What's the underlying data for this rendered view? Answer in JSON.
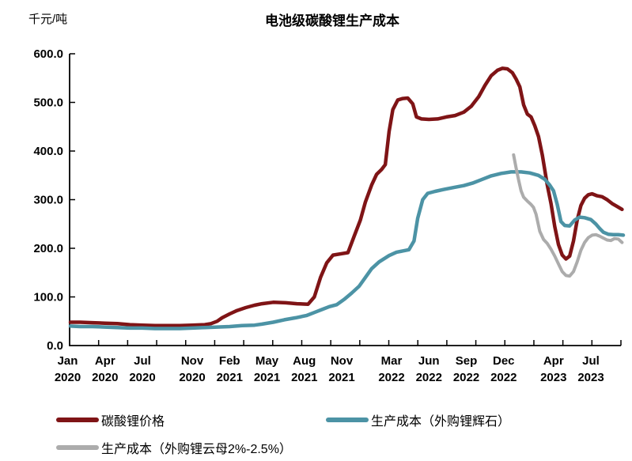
{
  "chart_data": {
    "type": "line",
    "title": "电池级碳酸锂生产成本",
    "grid": false,
    "legend_position": "bottom",
    "x_unit": "months_since_Jan_2020",
    "y_axis": {
      "unit": "千元/吨",
      "min": 0,
      "max": 600,
      "ticks": [
        {
          "v": 0,
          "label": "0.0"
        },
        {
          "v": 100,
          "label": "100.0"
        },
        {
          "v": 200,
          "label": "200.0"
        },
        {
          "v": 300,
          "label": "300.0"
        },
        {
          "v": 400,
          "label": "400.0"
        },
        {
          "v": 500,
          "label": "500.0"
        },
        {
          "v": 600,
          "label": "600.0"
        }
      ]
    },
    "x_axis": {
      "minor_tick_count": 19,
      "labels": [
        {
          "m": 0,
          "month": "Jan",
          "year": "2020"
        },
        {
          "m": 3,
          "month": "Apr",
          "year": "2020"
        },
        {
          "m": 6,
          "month": "Jul",
          "year": "2020"
        },
        {
          "m": 10,
          "month": "Nov",
          "year": "2020"
        },
        {
          "m": 13,
          "month": "Feb",
          "year": "2021"
        },
        {
          "m": 16,
          "month": "May",
          "year": "2021"
        },
        {
          "m": 19,
          "month": "Aug",
          "year": "2021"
        },
        {
          "m": 22,
          "month": "Nov",
          "year": "2021"
        },
        {
          "m": 26,
          "month": "Mar",
          "year": "2022"
        },
        {
          "m": 29,
          "month": "Jun",
          "year": "2022"
        },
        {
          "m": 32,
          "month": "Sep",
          "year": "2022"
        },
        {
          "m": 35,
          "month": "Dec",
          "year": "2022"
        },
        {
          "m": 39,
          "month": "Apr",
          "year": "2023"
        },
        {
          "m": 42,
          "month": "Jul",
          "year": "2023"
        }
      ]
    },
    "series": [
      {
        "name": "碳酸锂价格",
        "color": "#7F1416",
        "points": [
          [
            0,
            48
          ],
          [
            1,
            48
          ],
          [
            2,
            47
          ],
          [
            3,
            46
          ],
          [
            4,
            45
          ],
          [
            5,
            43
          ],
          [
            6,
            42
          ],
          [
            7,
            41
          ],
          [
            8,
            41
          ],
          [
            9,
            41
          ],
          [
            10,
            42
          ],
          [
            11,
            43
          ],
          [
            11.5,
            45
          ],
          [
            12,
            50
          ],
          [
            12.4,
            57
          ],
          [
            13,
            65
          ],
          [
            13.6,
            72
          ],
          [
            14.3,
            78
          ],
          [
            15,
            83
          ],
          [
            15.6,
            86
          ],
          [
            16.5,
            89
          ],
          [
            17.5,
            88
          ],
          [
            18.4,
            86
          ],
          [
            19.3,
            85
          ],
          [
            19.8,
            100
          ],
          [
            20.3,
            140
          ],
          [
            20.8,
            170
          ],
          [
            21.3,
            186
          ],
          [
            22,
            189
          ],
          [
            22.5,
            191
          ],
          [
            23,
            225
          ],
          [
            23.5,
            258
          ],
          [
            23.9,
            295
          ],
          [
            24.4,
            330
          ],
          [
            24.8,
            352
          ],
          [
            25.2,
            362
          ],
          [
            25.5,
            372
          ],
          [
            25.8,
            440
          ],
          [
            26.1,
            485
          ],
          [
            26.5,
            505
          ],
          [
            26.9,
            508
          ],
          [
            27.3,
            509
          ],
          [
            27.7,
            497
          ],
          [
            28,
            470
          ],
          [
            28.4,
            466
          ],
          [
            29,
            465
          ],
          [
            29.7,
            466
          ],
          [
            30.4,
            470
          ],
          [
            31.1,
            473
          ],
          [
            31.8,
            480
          ],
          [
            32.4,
            492
          ],
          [
            33,
            512
          ],
          [
            33.5,
            535
          ],
          [
            34,
            555
          ],
          [
            34.5,
            566
          ],
          [
            34.9,
            570
          ],
          [
            35.3,
            569
          ],
          [
            35.7,
            561
          ],
          [
            36,
            548
          ],
          [
            36.3,
            532
          ],
          [
            36.6,
            495
          ],
          [
            36.9,
            476
          ],
          [
            37.2,
            470
          ],
          [
            37.5,
            452
          ],
          [
            37.8,
            430
          ],
          [
            38.1,
            392
          ],
          [
            38.5,
            330
          ],
          [
            38.8,
            292
          ],
          [
            39.1,
            245
          ],
          [
            39.4,
            208
          ],
          [
            39.7,
            186
          ],
          [
            40,
            178
          ],
          [
            40.3,
            184
          ],
          [
            40.6,
            215
          ],
          [
            40.9,
            258
          ],
          [
            41.2,
            288
          ],
          [
            41.5,
            303
          ],
          [
            41.8,
            310
          ],
          [
            42.1,
            312
          ],
          [
            42.5,
            308
          ],
          [
            42.9,
            306
          ],
          [
            43.3,
            300
          ],
          [
            43.7,
            292
          ],
          [
            44.1,
            286
          ],
          [
            44.5,
            280
          ]
        ]
      },
      {
        "name": "生产成本（外购锂辉石）",
        "color": "#4C93A5",
        "points": [
          [
            0,
            40
          ],
          [
            1,
            39
          ],
          [
            2,
            39
          ],
          [
            3,
            38
          ],
          [
            4,
            37
          ],
          [
            5,
            36
          ],
          [
            6,
            36
          ],
          [
            7,
            35
          ],
          [
            8,
            35
          ],
          [
            9,
            35
          ],
          [
            10,
            36
          ],
          [
            11,
            37
          ],
          [
            12,
            38
          ],
          [
            13,
            39
          ],
          [
            14,
            41
          ],
          [
            15,
            42
          ],
          [
            15.6,
            44
          ],
          [
            16.5,
            48
          ],
          [
            17.4,
            53
          ],
          [
            18.3,
            57
          ],
          [
            19.2,
            62
          ],
          [
            19.8,
            68
          ],
          [
            20.5,
            75
          ],
          [
            21,
            80
          ],
          [
            21.6,
            84
          ],
          [
            22.2,
            95
          ],
          [
            22.8,
            108
          ],
          [
            23.4,
            122
          ],
          [
            23.9,
            140
          ],
          [
            24.4,
            158
          ],
          [
            25,
            172
          ],
          [
            25.8,
            185
          ],
          [
            26.4,
            192
          ],
          [
            27,
            195
          ],
          [
            27.4,
            197
          ],
          [
            27.8,
            215
          ],
          [
            28.1,
            262
          ],
          [
            28.5,
            300
          ],
          [
            28.9,
            313
          ],
          [
            29.5,
            317
          ],
          [
            30.2,
            321
          ],
          [
            31,
            325
          ],
          [
            31.8,
            329
          ],
          [
            32.5,
            334
          ],
          [
            33.2,
            341
          ],
          [
            34,
            349
          ],
          [
            34.8,
            354
          ],
          [
            35.6,
            357
          ],
          [
            36.4,
            357
          ],
          [
            37.1,
            355
          ],
          [
            37.8,
            350
          ],
          [
            38.3,
            342
          ],
          [
            38.7,
            330
          ],
          [
            39,
            318
          ],
          [
            39.3,
            290
          ],
          [
            39.6,
            255
          ],
          [
            39.9,
            247
          ],
          [
            40.3,
            246
          ],
          [
            40.7,
            258
          ],
          [
            41.1,
            264
          ],
          [
            41.5,
            263
          ],
          [
            42,
            259
          ],
          [
            42.4,
            250
          ],
          [
            42.7,
            241
          ],
          [
            43,
            233
          ],
          [
            43.4,
            229
          ],
          [
            43.8,
            228
          ],
          [
            44.2,
            228
          ],
          [
            44.6,
            227
          ]
        ]
      },
      {
        "name": "生产成本（外购锂云母2%-2.5%）",
        "color": "#ACACAC",
        "points": [
          [
            35.8,
            392
          ],
          [
            36,
            365
          ],
          [
            36.2,
            340
          ],
          [
            36.4,
            318
          ],
          [
            36.6,
            305
          ],
          [
            36.9,
            297
          ],
          [
            37.2,
            290
          ],
          [
            37.4,
            284
          ],
          [
            37.6,
            270
          ],
          [
            37.9,
            235
          ],
          [
            38.2,
            218
          ],
          [
            38.5,
            210
          ],
          [
            38.8,
            198
          ],
          [
            39.1,
            184
          ],
          [
            39.4,
            168
          ],
          [
            39.7,
            152
          ],
          [
            40,
            144
          ],
          [
            40.3,
            143
          ],
          [
            40.6,
            152
          ],
          [
            40.9,
            172
          ],
          [
            41.2,
            196
          ],
          [
            41.5,
            212
          ],
          [
            41.8,
            222
          ],
          [
            42.1,
            227
          ],
          [
            42.4,
            228
          ],
          [
            42.7,
            225
          ],
          [
            43,
            221
          ],
          [
            43.3,
            217
          ],
          [
            43.6,
            216
          ],
          [
            43.9,
            220
          ],
          [
            44.2,
            219
          ],
          [
            44.5,
            212
          ]
        ]
      }
    ]
  }
}
